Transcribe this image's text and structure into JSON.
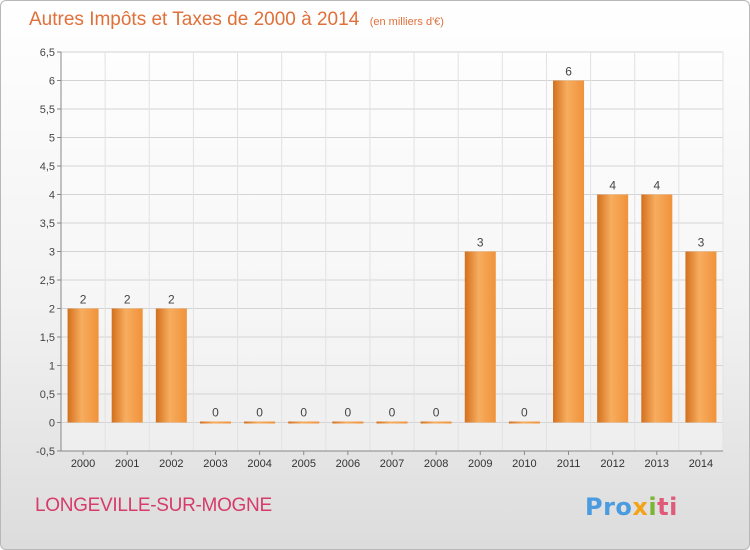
{
  "chart_data": {
    "type": "bar",
    "title": "Autres Impôts et Taxes de 2000 à 2014",
    "subtitle": "(en milliers d'€)",
    "categories": [
      "2000",
      "2001",
      "2002",
      "2003",
      "2004",
      "2005",
      "2006",
      "2007",
      "2008",
      "2009",
      "2010",
      "2011",
      "2012",
      "2013",
      "2014"
    ],
    "values": [
      2,
      2,
      2,
      0,
      0,
      0,
      0,
      0,
      0,
      3,
      0,
      6,
      4,
      4,
      3
    ],
    "data_labels": [
      "2",
      "2",
      "2",
      "0",
      "0",
      "0",
      "0",
      "0",
      "0",
      "3",
      "0",
      "6",
      "4",
      "4",
      "3"
    ],
    "ylim": [
      -0.5,
      6.5
    ],
    "yticks": [
      -0.5,
      0,
      0.5,
      1,
      1.5,
      2,
      2.5,
      3,
      3.5,
      4,
      4.5,
      5,
      5.5,
      6,
      6.5
    ],
    "ytick_labels": [
      "-0,5",
      "0",
      "0,5",
      "1",
      "1,5",
      "2",
      "2,5",
      "3",
      "3,5",
      "4",
      "4,5",
      "5",
      "5,5",
      "6",
      "6,5"
    ],
    "grid": true,
    "colors": {
      "bar": "#f0923a",
      "bar_light": "#f7ad5f",
      "bar_dark": "#d2701d",
      "title": "#e0703a"
    }
  },
  "footer": {
    "commune": "LONGEVILLE-SUR-MOGNE"
  },
  "logo": {
    "p1": "Pro",
    "p2": "x",
    "p3": "i",
    "p4": "ti"
  }
}
